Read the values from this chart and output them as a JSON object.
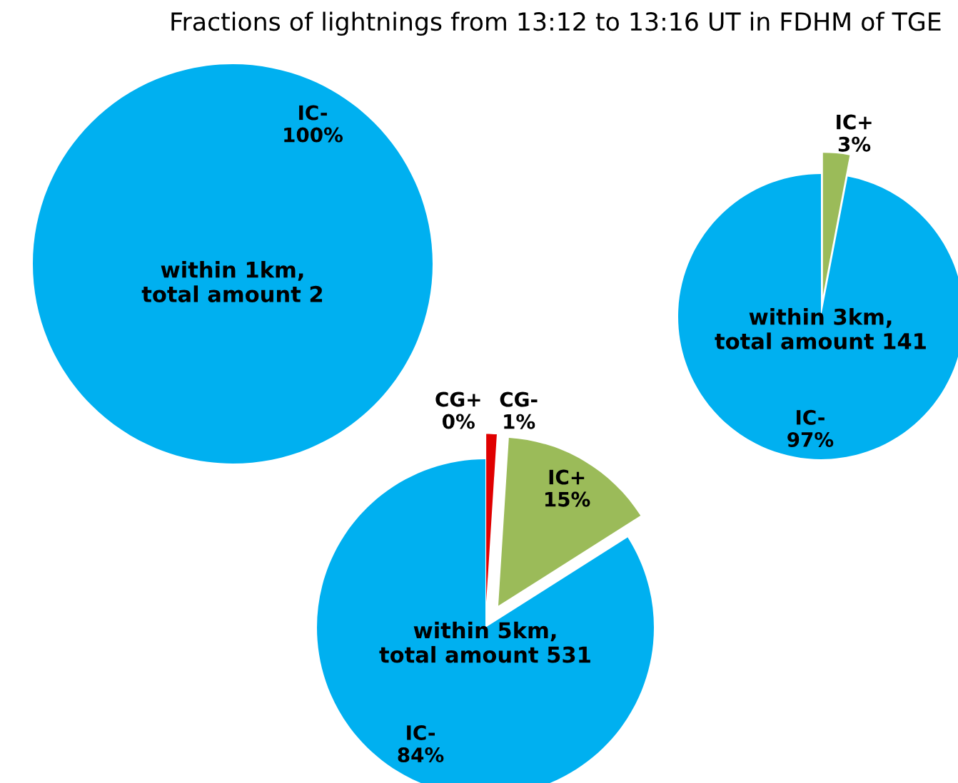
{
  "chart_data": [
    {
      "type": "pie",
      "title": "Fractions of lightnings from 13:12 to 13:16 UT in FDHM of TGE",
      "categories": [
        "IC-"
      ],
      "values": [
        100
      ],
      "colors": [
        "#00b0f0"
      ],
      "value_labels": [
        "100%"
      ],
      "annotations": [
        "within 1km,\ntotal amount 2"
      ]
    },
    {
      "type": "pie",
      "categories": [
        "IC+",
        "IC-"
      ],
      "values": [
        3,
        97
      ],
      "colors": [
        "#9bbb59",
        "#00b0f0"
      ],
      "value_labels": [
        "3%",
        "97%"
      ],
      "annotations": [
        "within 3km,\ntotal amount 141"
      ]
    },
    {
      "type": "pie",
      "categories": [
        "CG+",
        "CG-",
        "IC+",
        "IC-"
      ],
      "values": [
        0,
        1,
        15,
        84
      ],
      "colors": [
        "#c00000",
        "#e00000",
        "#9bbb59",
        "#00b0f0"
      ],
      "value_labels": [
        "0%",
        "1%",
        "15%",
        "84%"
      ],
      "annotations": [
        "within 5km,\ntotal amount 531"
      ]
    }
  ]
}
